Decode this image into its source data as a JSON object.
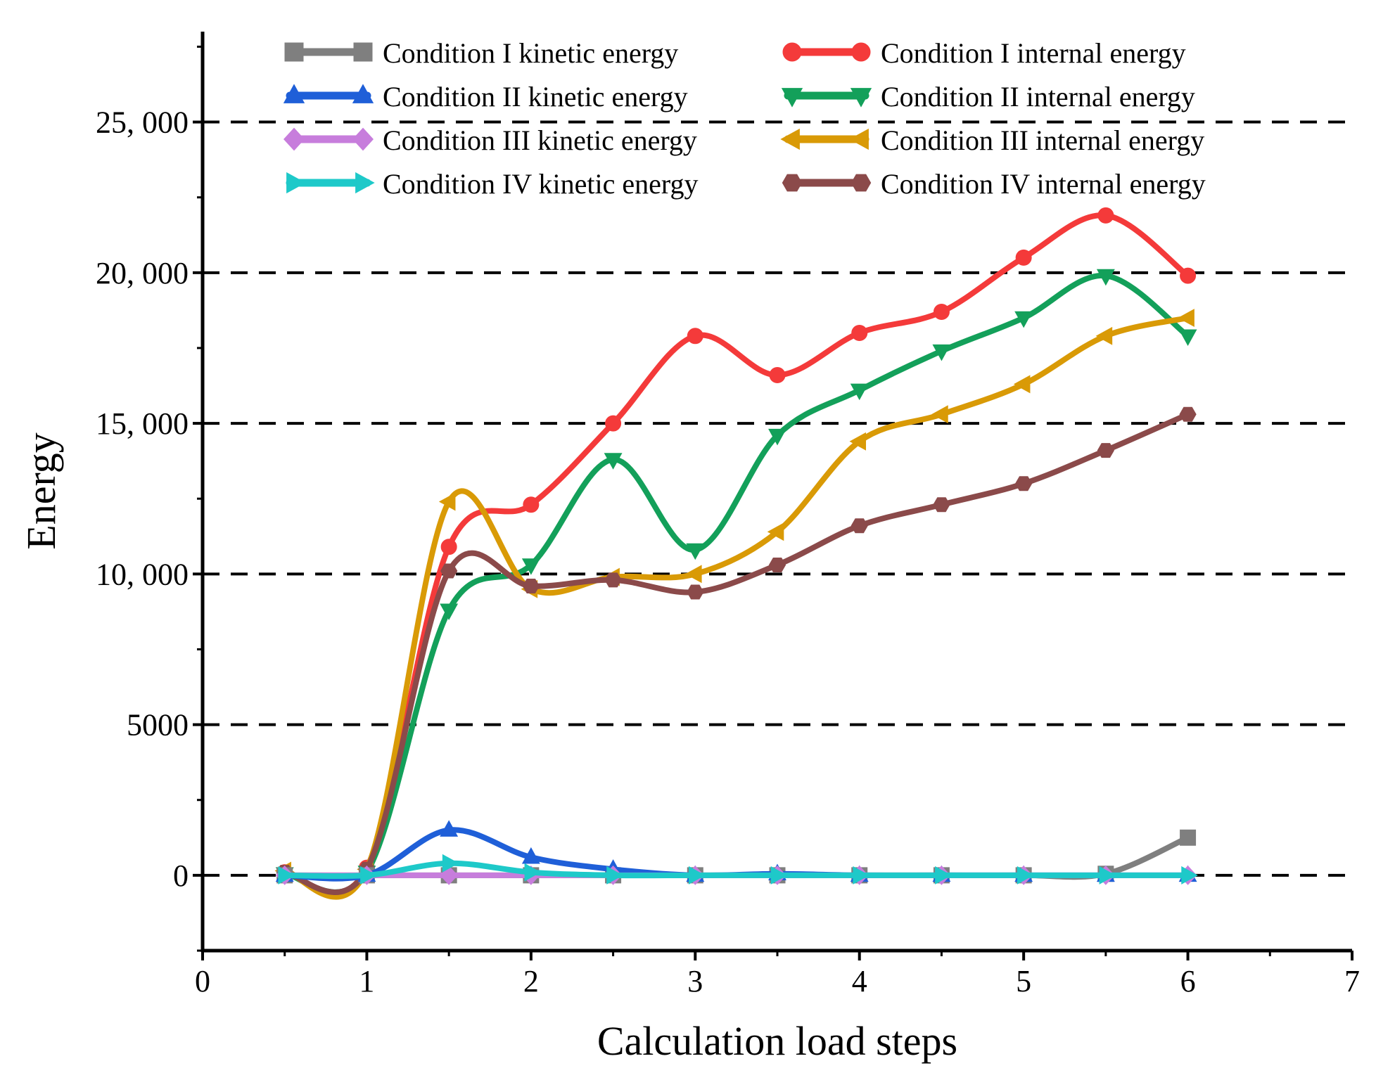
{
  "chart_data": {
    "type": "line",
    "title": "",
    "xlabel": "Calculation load steps",
    "ylabel": "Energy",
    "xlim": [
      0,
      7
    ],
    "ylim": [
      -2500,
      28000
    ],
    "x_ticks": [
      0,
      1,
      2,
      3,
      4,
      5,
      6,
      7
    ],
    "x_tick_labels": [
      "0",
      "1",
      "2",
      "3",
      "4",
      "5",
      "6",
      "7"
    ],
    "y_ticks": [
      0,
      5000,
      10000,
      15000,
      20000,
      25000
    ],
    "y_tick_labels": [
      "0",
      "5000",
      "10, 000",
      "15, 000",
      "20, 000",
      "25, 000"
    ],
    "grid": "horizontal dashed",
    "legend_position": "top",
    "x": [
      0.5,
      1,
      1.5,
      2,
      2.5,
      3,
      3.5,
      4,
      4.5,
      5,
      5.5,
      6
    ],
    "series": [
      {
        "name": "Condition I kinetic energy",
        "color": "#7f7f7f",
        "marker": "square",
        "values": [
          0,
          0,
          0,
          0,
          0,
          0,
          0,
          0,
          0,
          0,
          50,
          1250
        ]
      },
      {
        "name": "Condition I internal energy",
        "color": "#f43a3a",
        "marker": "circle",
        "values": [
          100,
          250,
          10900,
          12300,
          15000,
          17900,
          16600,
          18000,
          18700,
          20500,
          21900,
          19900
        ]
      },
      {
        "name": "Condition II kinetic energy",
        "color": "#1f5fd8",
        "marker": "triangle-up",
        "values": [
          0,
          0,
          1500,
          600,
          200,
          0,
          50,
          0,
          0,
          0,
          0,
          0
        ]
      },
      {
        "name": "Condition II internal energy",
        "color": "#13a05a",
        "marker": "triangle-down",
        "values": [
          50,
          100,
          8800,
          10300,
          13800,
          10800,
          14600,
          16100,
          17400,
          18500,
          19900,
          17900
        ]
      },
      {
        "name": "Condition III kinetic energy",
        "color": "#c77ddc",
        "marker": "diamond",
        "values": [
          0,
          0,
          0,
          0,
          0,
          0,
          0,
          0,
          0,
          0,
          0,
          0
        ]
      },
      {
        "name": "Condition III internal energy",
        "color": "#d99a06",
        "marker": "triangle-left",
        "values": [
          150,
          200,
          12400,
          9500,
          9900,
          10000,
          11400,
          14400,
          15300,
          16300,
          17900,
          18500
        ]
      },
      {
        "name": "Condition IV kinetic energy",
        "color": "#1ec9c9",
        "marker": "triangle-right",
        "values": [
          0,
          0,
          400,
          100,
          0,
          0,
          0,
          0,
          0,
          0,
          0,
          0
        ]
      },
      {
        "name": "Condition IV internal energy",
        "color": "#8b4a4a",
        "marker": "hexagon",
        "values": [
          100,
          200,
          10100,
          9600,
          9800,
          9400,
          10300,
          11600,
          12300,
          13000,
          14100,
          15300
        ]
      }
    ]
  }
}
